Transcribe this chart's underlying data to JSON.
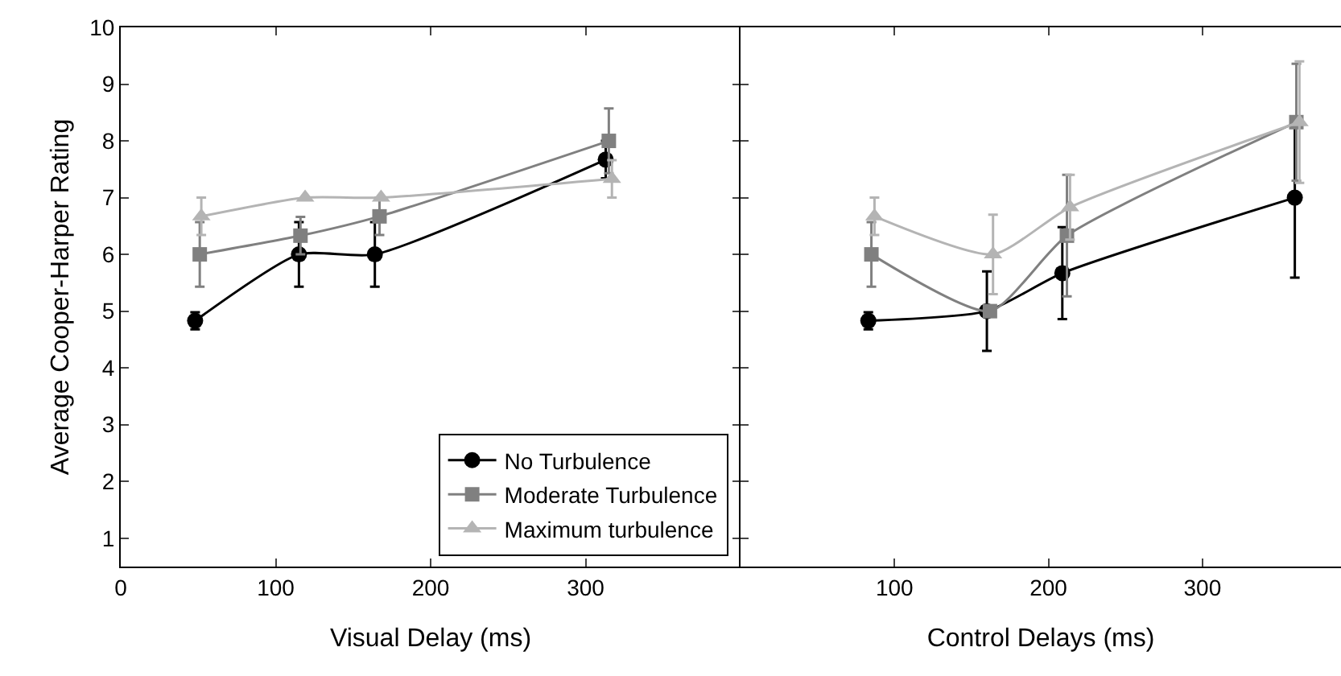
{
  "chart_data": [
    {
      "type": "line",
      "xlabel": "Visual Delay (ms)",
      "ylabel": "Average Cooper-Harper Rating",
      "xlim": [
        0,
        400
      ],
      "xticks": [
        0,
        100,
        200,
        300
      ],
      "ylim": [
        0.5,
        10
      ],
      "yticks": [
        1,
        2,
        3,
        4,
        5,
        6,
        7,
        8,
        9,
        10
      ],
      "legend": "bottom right",
      "grid": false,
      "series": [
        {
          "name": "No Turbulence",
          "color": "#000000",
          "marker": "circle",
          "x": [
            48,
            115,
            164,
            313
          ],
          "values": [
            4.83,
            6.0,
            6.0,
            7.67
          ],
          "errors": [
            0.15,
            0.57,
            0.57,
            0.33
          ]
        },
        {
          "name": "Moderate Turbulence",
          "color": "#808080",
          "marker": "square",
          "x": [
            51,
            116,
            167,
            315
          ],
          "values": [
            6.0,
            6.33,
            6.67,
            8.0
          ],
          "errors": [
            0.57,
            0.33,
            0.33,
            0.57
          ]
        },
        {
          "name": "Maximum turbulence",
          "color": "#b4b4b4",
          "marker": "triangle",
          "x": [
            52,
            119,
            168,
            317
          ],
          "values": [
            6.67,
            7.0,
            7.0,
            7.33
          ],
          "errors": [
            0.33,
            null,
            null,
            0.33
          ]
        }
      ]
    },
    {
      "type": "line",
      "xlabel": "Control Delays (ms)",
      "xlim": [
        0,
        390
      ],
      "xticks": [
        100,
        200,
        300
      ],
      "ylim": [
        0.5,
        10
      ],
      "yticks": [
        1,
        2,
        3,
        4,
        5,
        6,
        7,
        8,
        9,
        10
      ],
      "tick_labels": "x",
      "grid": false,
      "series": [
        {
          "color": "#000000",
          "marker": "circle",
          "x": [
            83,
            160,
            209,
            360
          ],
          "values": [
            4.83,
            5.0,
            5.67,
            7.0
          ],
          "errors": [
            0.15,
            0.7,
            0.81,
            1.41
          ]
        },
        {
          "color": "#808080",
          "marker": "square",
          "x": [
            85,
            162,
            212,
            361
          ],
          "values": [
            6.0,
            5.0,
            6.33,
            8.33
          ],
          "errors": [
            0.57,
            null,
            1.07,
            1.03
          ]
        },
        {
          "color": "#b4b4b4",
          "marker": "triangle",
          "x": [
            87,
            164,
            214,
            363
          ],
          "values": [
            6.67,
            6.0,
            6.83,
            8.33
          ],
          "errors": [
            0.33,
            0.7,
            0.57,
            1.07
          ]
        }
      ]
    }
  ]
}
